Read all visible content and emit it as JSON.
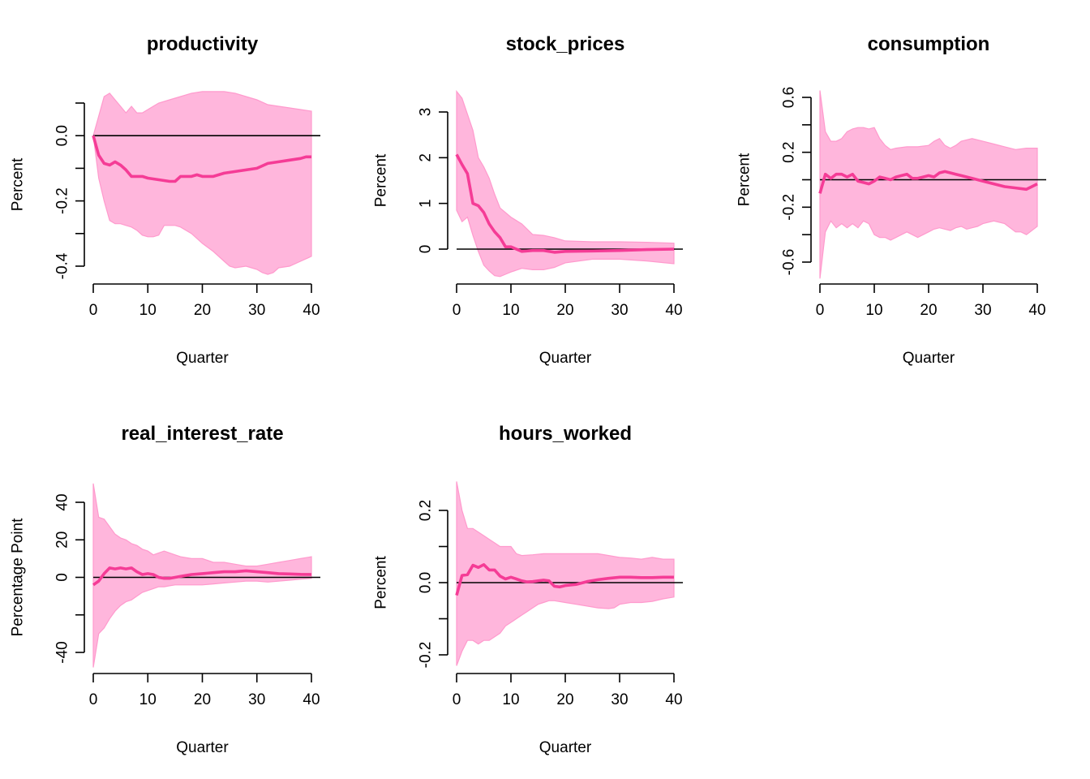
{
  "figure": {
    "band_color": "#FFB6DC",
    "band_edge_color": "#FF9ACD",
    "line_color": "#F53C96",
    "zero_line_color": "#000000"
  },
  "chart_data": [
    {
      "type": "line",
      "title": "productivity",
      "xlabel": "Quarter",
      "ylabel": "Percent",
      "xlim": [
        0,
        40
      ],
      "ylim": [
        -0.42,
        0.1
      ],
      "xticks": [
        0,
        10,
        20,
        30,
        40
      ],
      "yticks": [
        -0.4,
        -0.3,
        -0.2,
        -0.1,
        0.0,
        0.1
      ],
      "yticklabels": [
        "-0.4",
        "",
        "-0.2",
        "",
        "0.0",
        ""
      ],
      "series": [
        {
          "role": "upper",
          "x": [
            0,
            1,
            2,
            3,
            4,
            5,
            6,
            7,
            8,
            9,
            10,
            12,
            14,
            16,
            18,
            20,
            22,
            24,
            26,
            28,
            30,
            32,
            34,
            36,
            38,
            40
          ],
          "values": [
            0.0,
            0.06,
            0.12,
            0.13,
            0.11,
            0.09,
            0.07,
            0.09,
            0.07,
            0.07,
            0.08,
            0.1,
            0.11,
            0.12,
            0.13,
            0.135,
            0.135,
            0.135,
            0.13,
            0.12,
            0.11,
            0.095,
            0.09,
            0.085,
            0.08,
            0.075
          ]
        },
        {
          "role": "estimate",
          "x": [
            0,
            1,
            2,
            3,
            4,
            5,
            6,
            7,
            8,
            9,
            10,
            12,
            14,
            15,
            16,
            17,
            18,
            19,
            20,
            22,
            24,
            26,
            28,
            30,
            32,
            34,
            36,
            38,
            39,
            40
          ],
          "values": [
            0.0,
            -0.06,
            -0.085,
            -0.09,
            -0.08,
            -0.09,
            -0.105,
            -0.125,
            -0.125,
            -0.125,
            -0.13,
            -0.135,
            -0.14,
            -0.14,
            -0.125,
            -0.125,
            -0.125,
            -0.12,
            -0.125,
            -0.125,
            -0.115,
            -0.11,
            -0.105,
            -0.1,
            -0.085,
            -0.08,
            -0.075,
            -0.07,
            -0.065,
            -0.065
          ]
        },
        {
          "role": "lower",
          "x": [
            0,
            1,
            2,
            3,
            4,
            5,
            6,
            7,
            8,
            9,
            10,
            11,
            12,
            13,
            14,
            15,
            16,
            18,
            20,
            22,
            24,
            25,
            26,
            28,
            30,
            31,
            32,
            33,
            34,
            36,
            38,
            40
          ],
          "values": [
            0.0,
            -0.13,
            -0.2,
            -0.26,
            -0.27,
            -0.27,
            -0.275,
            -0.28,
            -0.29,
            -0.305,
            -0.31,
            -0.31,
            -0.305,
            -0.275,
            -0.275,
            -0.275,
            -0.28,
            -0.3,
            -0.33,
            -0.355,
            -0.385,
            -0.4,
            -0.405,
            -0.4,
            -0.41,
            -0.42,
            -0.425,
            -0.42,
            -0.405,
            -0.4,
            -0.385,
            -0.37
          ]
        }
      ]
    },
    {
      "type": "line",
      "title": "stock_prices",
      "xlabel": "Quarter",
      "ylabel": "Percent",
      "xlim": [
        0,
        40
      ],
      "ylim": [
        -0.6,
        3.45
      ],
      "xticks": [
        0,
        10,
        20,
        30,
        40
      ],
      "yticks": [
        0,
        1,
        2,
        3
      ],
      "yticklabels": [
        "0",
        "1",
        "2",
        "3"
      ],
      "series": [
        {
          "role": "upper",
          "x": [
            0,
            1,
            2,
            3,
            4,
            5,
            6,
            7,
            8,
            9,
            10,
            12,
            14,
            16,
            18,
            20,
            25,
            30,
            35,
            40
          ],
          "values": [
            3.45,
            3.3,
            2.95,
            2.6,
            2.0,
            1.8,
            1.55,
            1.2,
            0.9,
            0.8,
            0.7,
            0.55,
            0.32,
            0.3,
            0.25,
            0.18,
            0.16,
            0.16,
            0.15,
            0.13
          ]
        },
        {
          "role": "estimate",
          "x": [
            0,
            1,
            2,
            3,
            4,
            5,
            6,
            7,
            8,
            9,
            10,
            12,
            14,
            16,
            18,
            20,
            25,
            30,
            35,
            40
          ],
          "values": [
            2.07,
            1.85,
            1.65,
            1.0,
            0.95,
            0.8,
            0.55,
            0.38,
            0.25,
            0.05,
            0.05,
            -0.05,
            -0.03,
            -0.03,
            -0.07,
            -0.05,
            -0.04,
            -0.03,
            -0.01,
            0.0
          ]
        },
        {
          "role": "lower",
          "x": [
            0,
            1,
            2,
            3,
            4,
            5,
            6,
            7,
            8,
            9,
            10,
            12,
            14,
            16,
            18,
            20,
            25,
            30,
            35,
            40
          ],
          "values": [
            0.85,
            0.6,
            0.7,
            0.3,
            -0.05,
            -0.35,
            -0.48,
            -0.58,
            -0.6,
            -0.55,
            -0.5,
            -0.42,
            -0.45,
            -0.45,
            -0.4,
            -0.3,
            -0.22,
            -0.22,
            -0.26,
            -0.32
          ]
        }
      ]
    },
    {
      "type": "line",
      "title": "consumption",
      "xlabel": "Quarter",
      "ylabel": "Percent",
      "xlim": [
        0,
        40
      ],
      "ylim": [
        -0.72,
        0.65
      ],
      "xticks": [
        0,
        10,
        20,
        30,
        40
      ],
      "yticks": [
        -0.6,
        -0.4,
        -0.2,
        0.0,
        0.2,
        0.4,
        0.6
      ],
      "yticklabels": [
        "-0.6",
        "",
        "-0.2",
        "",
        "0.2",
        "",
        "0.6"
      ],
      "series": [
        {
          "role": "upper",
          "x": [
            0,
            1,
            2,
            3,
            4,
            5,
            6,
            7,
            8,
            9,
            10,
            11,
            12,
            13,
            14,
            16,
            18,
            20,
            21,
            22,
            23,
            24,
            25,
            26,
            28,
            30,
            32,
            34,
            36,
            38,
            40
          ],
          "values": [
            0.65,
            0.35,
            0.28,
            0.28,
            0.3,
            0.35,
            0.37,
            0.38,
            0.38,
            0.37,
            0.38,
            0.3,
            0.25,
            0.22,
            0.23,
            0.24,
            0.24,
            0.25,
            0.28,
            0.3,
            0.25,
            0.23,
            0.25,
            0.28,
            0.3,
            0.28,
            0.26,
            0.24,
            0.22,
            0.23,
            0.23
          ]
        },
        {
          "role": "estimate",
          "x": [
            0,
            1,
            2,
            3,
            4,
            5,
            6,
            7,
            8,
            9,
            10,
            11,
            12,
            13,
            14,
            15,
            16,
            17,
            18,
            19,
            20,
            21,
            22,
            23,
            24,
            25,
            26,
            28,
            30,
            32,
            34,
            36,
            38,
            39,
            40
          ],
          "values": [
            -0.1,
            0.04,
            0.01,
            0.04,
            0.04,
            0.02,
            0.04,
            -0.01,
            -0.02,
            -0.03,
            -0.01,
            0.02,
            0.01,
            0.0,
            0.02,
            0.03,
            0.04,
            0.01,
            0.01,
            0.02,
            0.03,
            0.02,
            0.05,
            0.06,
            0.05,
            0.04,
            0.03,
            0.01,
            -0.01,
            -0.03,
            -0.05,
            -0.06,
            -0.07,
            -0.05,
            -0.03
          ]
        },
        {
          "role": "lower",
          "x": [
            0,
            1,
            2,
            3,
            4,
            5,
            6,
            7,
            8,
            9,
            10,
            11,
            12,
            13,
            14,
            15,
            16,
            17,
            18,
            19,
            20,
            21,
            22,
            23,
            24,
            25,
            26,
            27,
            28,
            29,
            30,
            32,
            34,
            36,
            37,
            38,
            40
          ],
          "values": [
            -0.72,
            -0.38,
            -0.3,
            -0.35,
            -0.32,
            -0.35,
            -0.32,
            -0.35,
            -0.3,
            -0.32,
            -0.4,
            -0.42,
            -0.42,
            -0.44,
            -0.42,
            -0.4,
            -0.38,
            -0.4,
            -0.42,
            -0.4,
            -0.38,
            -0.36,
            -0.35,
            -0.36,
            -0.37,
            -0.35,
            -0.34,
            -0.36,
            -0.35,
            -0.34,
            -0.32,
            -0.3,
            -0.32,
            -0.38,
            -0.38,
            -0.4,
            -0.34
          ]
        }
      ]
    },
    {
      "type": "line",
      "title": "real_interest_rate",
      "xlabel": "Quarter",
      "ylabel": "Percentage Point",
      "xlim": [
        0,
        40
      ],
      "ylim": [
        -48,
        50
      ],
      "xticks": [
        0,
        10,
        20,
        30,
        40
      ],
      "yticks": [
        -40,
        -20,
        0,
        20,
        40
      ],
      "yticklabels": [
        "-40",
        "",
        "0",
        "20",
        "40"
      ],
      "series": [
        {
          "role": "upper",
          "x": [
            0,
            1,
            2,
            3,
            4,
            5,
            6,
            7,
            8,
            9,
            10,
            11,
            12,
            13,
            14,
            15,
            16,
            18,
            20,
            22,
            24,
            26,
            28,
            30,
            32,
            34,
            36,
            38,
            40
          ],
          "values": [
            50,
            32,
            31,
            27,
            23,
            21,
            20,
            18,
            17,
            15,
            14,
            12,
            13,
            14,
            13,
            12,
            11,
            10,
            10,
            8,
            8,
            7,
            6,
            6,
            7,
            8,
            9,
            10,
            11
          ]
        },
        {
          "role": "estimate",
          "x": [
            0,
            1,
            2,
            3,
            4,
            5,
            6,
            7,
            8,
            9,
            10,
            11,
            12,
            13,
            14,
            15,
            16,
            18,
            20,
            22,
            24,
            26,
            28,
            30,
            32,
            34,
            36,
            38,
            40
          ],
          "values": [
            -4,
            -2,
            2,
            5,
            4.5,
            5,
            4.5,
            5,
            3,
            1.5,
            2,
            1.5,
            0,
            -0.5,
            -0.5,
            0,
            0.5,
            1.5,
            2,
            2.5,
            3,
            3,
            3.5,
            3,
            2.5,
            2,
            1.8,
            1.6,
            1.5
          ]
        },
        {
          "role": "lower",
          "x": [
            0,
            1,
            2,
            3,
            4,
            5,
            6,
            7,
            8,
            9,
            10,
            11,
            12,
            13,
            14,
            15,
            16,
            18,
            20,
            22,
            24,
            26,
            28,
            30,
            32,
            34,
            36,
            38,
            40
          ],
          "values": [
            -48,
            -30,
            -27,
            -22,
            -18,
            -15,
            -13,
            -12,
            -10,
            -8,
            -7,
            -6,
            -5,
            -5,
            -4.5,
            -4,
            -4,
            -4,
            -4,
            -3.5,
            -3,
            -2.5,
            -2,
            -2,
            -2.5,
            -2,
            -1.5,
            -1,
            -0.5
          ]
        }
      ]
    },
    {
      "type": "line",
      "title": "hours_worked",
      "xlabel": "Quarter",
      "ylabel": "Percent",
      "xlim": [
        0,
        40
      ],
      "ylim": [
        -0.23,
        0.28
      ],
      "xticks": [
        0,
        10,
        20,
        30,
        40
      ],
      "yticks": [
        -0.2,
        -0.1,
        0.0,
        0.1,
        0.2
      ],
      "yticklabels": [
        "-0.2",
        "",
        "0.0",
        "",
        "0.2"
      ],
      "series": [
        {
          "role": "upper",
          "x": [
            0,
            1,
            2,
            3,
            4,
            5,
            6,
            7,
            8,
            9,
            10,
            11,
            12,
            14,
            16,
            18,
            20,
            22,
            24,
            26,
            28,
            30,
            32,
            34,
            36,
            38,
            40
          ],
          "values": [
            0.28,
            0.2,
            0.15,
            0.15,
            0.14,
            0.13,
            0.12,
            0.11,
            0.1,
            0.1,
            0.1,
            0.08,
            0.075,
            0.077,
            0.08,
            0.08,
            0.08,
            0.08,
            0.08,
            0.08,
            0.075,
            0.07,
            0.068,
            0.065,
            0.07,
            0.065,
            0.065
          ]
        },
        {
          "role": "estimate",
          "x": [
            0,
            1,
            2,
            3,
            4,
            5,
            6,
            7,
            8,
            9,
            10,
            11,
            12,
            13,
            14,
            15,
            16,
            17,
            18,
            19,
            20,
            22,
            24,
            26,
            28,
            30,
            32,
            34,
            36,
            38,
            40
          ],
          "values": [
            -0.035,
            0.02,
            0.022,
            0.048,
            0.042,
            0.05,
            0.035,
            0.035,
            0.018,
            0.01,
            0.015,
            0.01,
            0.005,
            0.002,
            0.003,
            0.005,
            0.007,
            0.005,
            -0.01,
            -0.012,
            -0.008,
            -0.005,
            0.003,
            0.008,
            0.012,
            0.015,
            0.015,
            0.014,
            0.014,
            0.015,
            0.015
          ]
        },
        {
          "role": "lower",
          "x": [
            0,
            1,
            2,
            3,
            4,
            5,
            6,
            7,
            8,
            9,
            10,
            11,
            12,
            13,
            14,
            15,
            16,
            17,
            18,
            20,
            22,
            24,
            26,
            28,
            29,
            30,
            32,
            34,
            36,
            38,
            40
          ],
          "values": [
            -0.23,
            -0.19,
            -0.16,
            -0.16,
            -0.17,
            -0.16,
            -0.16,
            -0.15,
            -0.14,
            -0.12,
            -0.11,
            -0.1,
            -0.09,
            -0.08,
            -0.07,
            -0.06,
            -0.055,
            -0.05,
            -0.05,
            -0.055,
            -0.06,
            -0.065,
            -0.07,
            -0.072,
            -0.07,
            -0.06,
            -0.055,
            -0.055,
            -0.052,
            -0.045,
            -0.04
          ]
        }
      ]
    }
  ]
}
